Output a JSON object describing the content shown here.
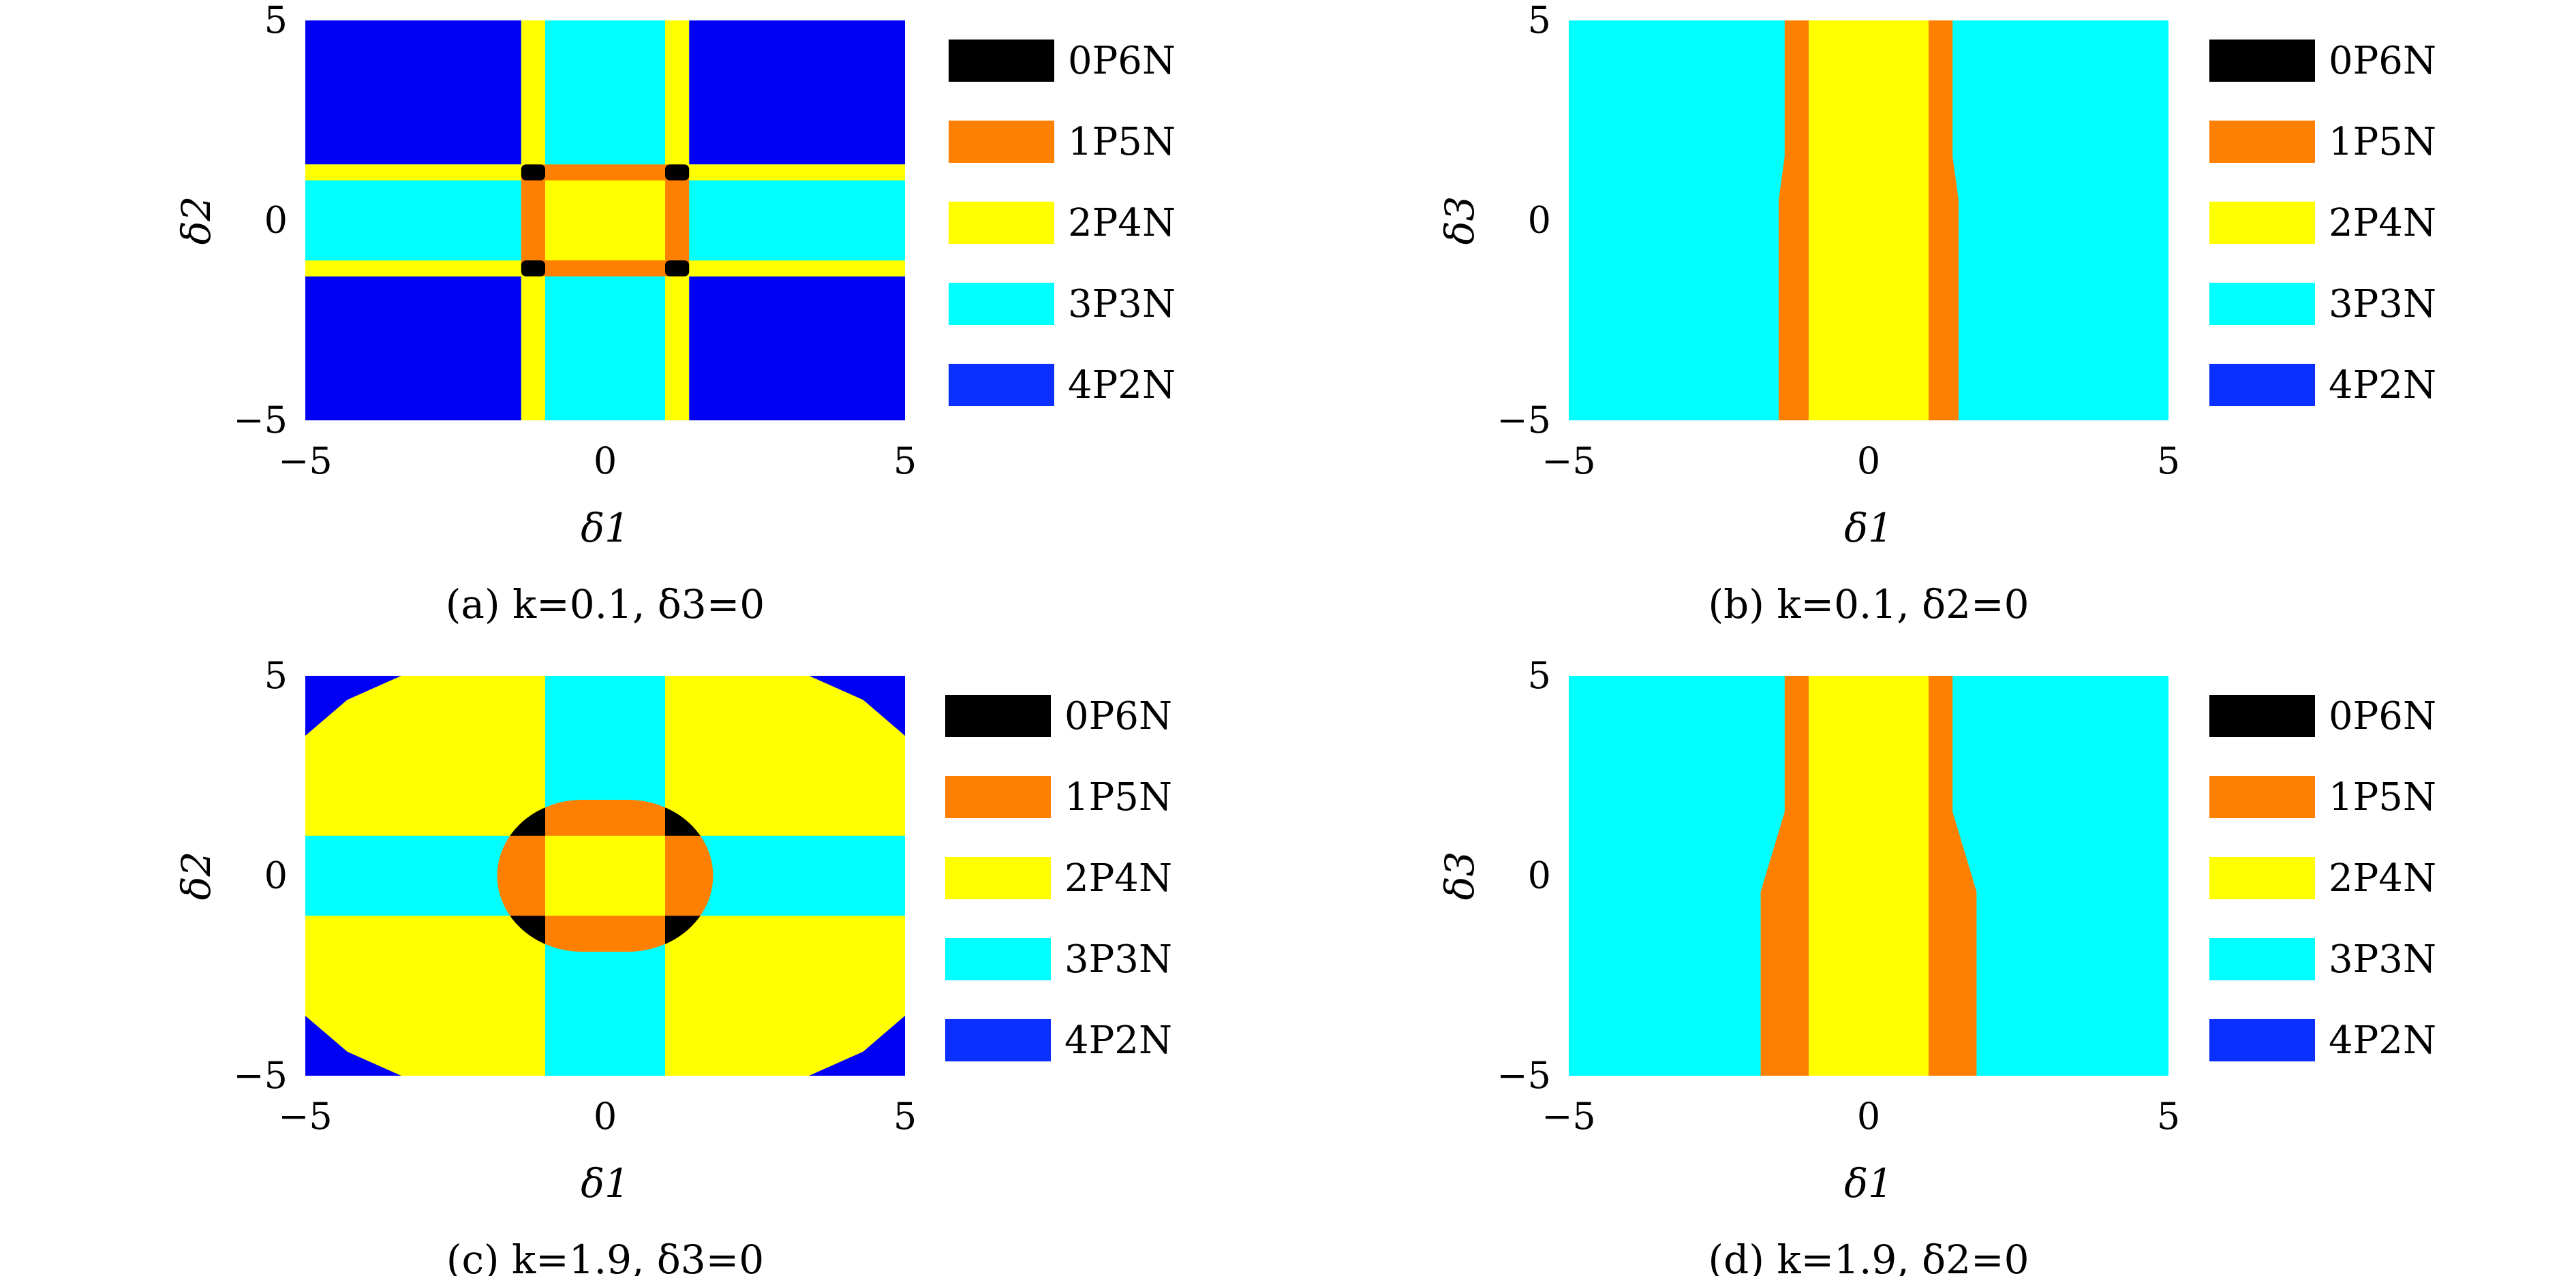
{
  "colors": {
    "0P6N": "#000000",
    "1P5N": "#ff7f00",
    "2P4N": "#ffff00",
    "3P3N": "#00ffff",
    "4P2N": "#0a2fff",
    "region_4P2N_fill": "#0000f5"
  },
  "chart_data": [
    {
      "type": "heatmap",
      "panel": "a",
      "caption": "(a) k=0.1, δ3=0",
      "xlabel": "δ1",
      "ylabel": "δ2",
      "xlim": [
        -5,
        5
      ],
      "ylim": [
        -5,
        5
      ],
      "xticks": [
        "−5",
        "0",
        "5"
      ],
      "yticks": [
        "−5",
        "0",
        "5"
      ],
      "legend": [
        "0P6N",
        "1P5N",
        "2P4N",
        "3P3N",
        "4P2N"
      ],
      "legend_position": "right",
      "regions": [
        {
          "state": "4P2N",
          "where": "|δ1| > 1.4 and |δ2| > 1.4"
        },
        {
          "state": "2P4N",
          "where": "bands 1.0 < |δ1| < 1.4 or 1.0 < |δ2| < 1.4 (outside center)"
        },
        {
          "state": "3P3N",
          "where": "|δ1| < 1.0 or |δ2| < 1.0 (outside center)"
        },
        {
          "state": "1P5N",
          "where": "frame of center square |δ1|, |δ2| < 1.4"
        },
        {
          "state": "2P4N",
          "where": "center |δ1| < 1.0 and |δ2| < 1.0"
        },
        {
          "state": "0P6N",
          "where": "corners 1.0 < |δ1|, |δ2| < 1.4"
        }
      ]
    },
    {
      "type": "heatmap",
      "panel": "b",
      "caption": "(b) k=0.1, δ2=0",
      "xlabel": "δ1",
      "ylabel": "δ3",
      "xlim": [
        -5,
        5
      ],
      "ylim": [
        -5,
        5
      ],
      "xticks": [
        "−5",
        "0",
        "5"
      ],
      "yticks": [
        "−5",
        "0",
        "5"
      ],
      "legend": [
        "0P6N",
        "1P5N",
        "2P4N",
        "3P3N",
        "4P2N"
      ],
      "legend_position": "right",
      "regions": [
        {
          "state": "3P3N",
          "where": "|δ1| > 1.4"
        },
        {
          "state": "1P5N",
          "where": "1.0 < |δ1| < 1.4"
        },
        {
          "state": "2P4N",
          "where": "|δ1| < 1.0"
        }
      ]
    },
    {
      "type": "heatmap",
      "panel": "c",
      "caption": "(c) k=1.9, δ3=0",
      "xlabel": "δ1",
      "ylabel": "δ2",
      "xlim": [
        -5,
        5
      ],
      "ylim": [
        -5,
        5
      ],
      "xticks": [
        "−5",
        "0",
        "5"
      ],
      "yticks": [
        "−5",
        "0",
        "5"
      ],
      "legend": [
        "0P6N",
        "1P5N",
        "2P4N",
        "3P3N",
        "4P2N"
      ],
      "legend_position": "right",
      "regions": [
        {
          "state": "2P4N",
          "where": "|δ1| > 1.0 and |δ2| > 1.0"
        },
        {
          "state": "3P3N",
          "where": "|δ1| < 1.0 or |δ2| < 1.0"
        },
        {
          "state": "1P5N",
          "where": "rounded central region, |δ1| < 1.8, |δ2| < 1.9"
        },
        {
          "state": "2P4N",
          "where": "center |δ1| < 1.0 and |δ2| < 1.0"
        },
        {
          "state": "0P6N",
          "where": "corners of central region, |δ1| > 1.0 and |δ2| > 1.0"
        },
        {
          "state": "4P2N",
          "where": "outer corners of the domain"
        }
      ]
    },
    {
      "type": "heatmap",
      "panel": "d",
      "caption": "(d) k=1.9, δ2=0",
      "xlabel": "δ1",
      "ylabel": "δ3",
      "xlim": [
        -5,
        5
      ],
      "ylim": [
        -5,
        5
      ],
      "xticks": [
        "−5",
        "0",
        "5"
      ],
      "yticks": [
        "−5",
        "0",
        "5"
      ],
      "legend": [
        "0P6N",
        "1P5N",
        "2P4N",
        "3P3N",
        "4P2N"
      ],
      "legend_position": "right",
      "regions": [
        {
          "state": "3P3N",
          "where": "outside the 1P5N band"
        },
        {
          "state": "1P5N",
          "where": "1.0 < |δ1| < 1.4 above δ3 ≈ 1.5, widening to 1.0 < |δ1| < 1.8 below δ3 ≈ −0.5"
        },
        {
          "state": "2P4N",
          "where": "|δ1| < 1.0"
        }
      ]
    }
  ]
}
